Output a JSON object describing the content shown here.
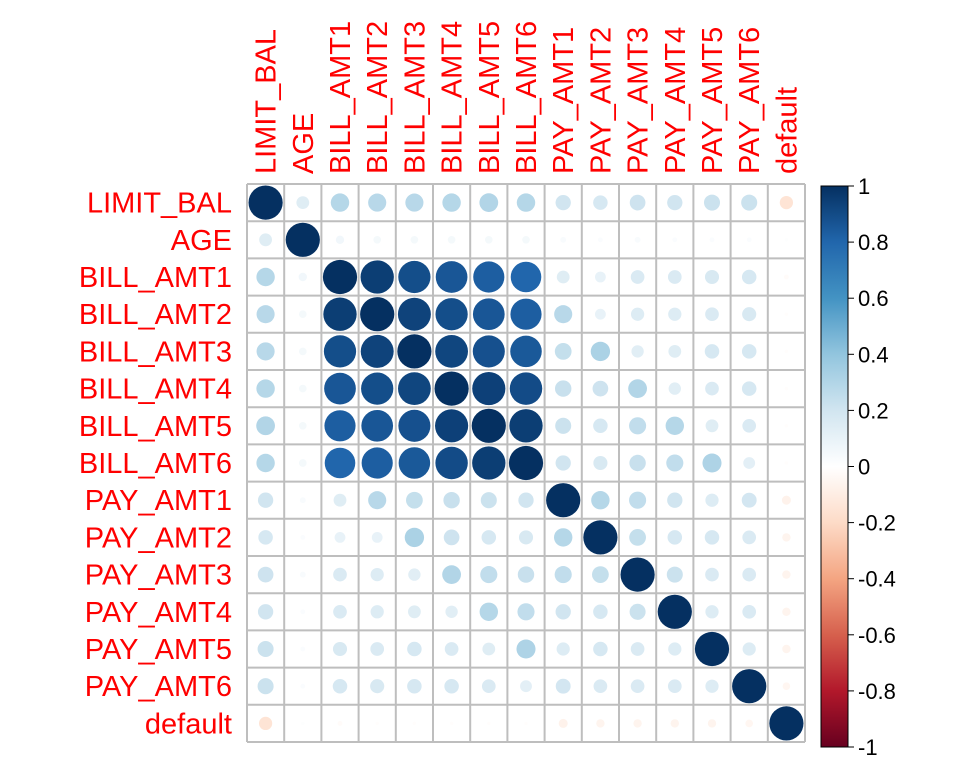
{
  "chart_data": {
    "type": "heatmap",
    "style": "circle correlation matrix",
    "variables": [
      "LIMIT_BAL",
      "AGE",
      "BILL_AMT1",
      "BILL_AMT2",
      "BILL_AMT3",
      "BILL_AMT4",
      "BILL_AMT5",
      "BILL_AMT6",
      "PAY_AMT1",
      "PAY_AMT2",
      "PAY_AMT3",
      "PAY_AMT4",
      "PAY_AMT5",
      "PAY_AMT6",
      "default"
    ],
    "matrix": [
      [
        1.0,
        0.14,
        0.29,
        0.28,
        0.28,
        0.29,
        0.3,
        0.29,
        0.2,
        0.18,
        0.21,
        0.2,
        0.22,
        0.22,
        -0.15
      ],
      [
        0.14,
        1.0,
        0.06,
        0.05,
        0.05,
        0.05,
        0.05,
        0.05,
        0.03,
        0.02,
        0.03,
        0.02,
        0.02,
        0.02,
        0.01
      ],
      [
        0.29,
        0.06,
        1.0,
        0.95,
        0.89,
        0.86,
        0.83,
        0.8,
        0.14,
        0.1,
        0.16,
        0.16,
        0.17,
        0.18,
        -0.02
      ],
      [
        0.28,
        0.05,
        0.95,
        1.0,
        0.93,
        0.89,
        0.86,
        0.83,
        0.28,
        0.1,
        0.15,
        0.15,
        0.16,
        0.17,
        -0.01
      ],
      [
        0.28,
        0.05,
        0.89,
        0.93,
        1.0,
        0.92,
        0.88,
        0.85,
        0.24,
        0.32,
        0.13,
        0.14,
        0.18,
        0.18,
        -0.01
      ],
      [
        0.29,
        0.05,
        0.86,
        0.89,
        0.92,
        1.0,
        0.94,
        0.9,
        0.23,
        0.21,
        0.3,
        0.13,
        0.16,
        0.18,
        -0.01
      ],
      [
        0.3,
        0.05,
        0.83,
        0.86,
        0.88,
        0.94,
        1.0,
        0.95,
        0.22,
        0.18,
        0.25,
        0.29,
        0.14,
        0.16,
        -0.01
      ],
      [
        0.29,
        0.05,
        0.8,
        0.83,
        0.85,
        0.9,
        0.95,
        1.0,
        0.2,
        0.17,
        0.23,
        0.25,
        0.31,
        0.12,
        -0.01
      ],
      [
        0.2,
        0.03,
        0.14,
        0.28,
        0.24,
        0.23,
        0.22,
        0.2,
        1.0,
        0.29,
        0.25,
        0.2,
        0.15,
        0.19,
        -0.07
      ],
      [
        0.18,
        0.02,
        0.1,
        0.1,
        0.32,
        0.21,
        0.18,
        0.17,
        0.29,
        1.0,
        0.24,
        0.18,
        0.18,
        0.16,
        -0.06
      ],
      [
        0.21,
        0.03,
        0.16,
        0.15,
        0.13,
        0.3,
        0.25,
        0.23,
        0.25,
        0.24,
        1.0,
        0.22,
        0.16,
        0.16,
        -0.06
      ],
      [
        0.2,
        0.02,
        0.16,
        0.15,
        0.14,
        0.13,
        0.29,
        0.25,
        0.2,
        0.18,
        0.22,
        1.0,
        0.15,
        0.16,
        -0.06
      ],
      [
        0.22,
        0.02,
        0.17,
        0.16,
        0.18,
        0.16,
        0.14,
        0.31,
        0.15,
        0.18,
        0.16,
        0.15,
        1.0,
        0.15,
        -0.06
      ],
      [
        0.22,
        0.02,
        0.18,
        0.17,
        0.18,
        0.18,
        0.16,
        0.12,
        0.19,
        0.16,
        0.16,
        0.16,
        0.15,
        1.0,
        -0.05
      ],
      [
        -0.15,
        0.01,
        -0.02,
        -0.01,
        -0.01,
        -0.01,
        -0.01,
        -0.01,
        -0.07,
        -0.06,
        -0.06,
        -0.06,
        -0.06,
        -0.05,
        1.0
      ]
    ],
    "colorbar": {
      "ticks": [
        "1",
        "0.8",
        "0.6",
        "0.4",
        "0.2",
        "0",
        "-0.2",
        "-0.4",
        "-0.6",
        "-0.8",
        "-1"
      ],
      "range": [
        -1,
        1
      ]
    },
    "label_color": "#ff0000",
    "grid_color": "#bebebe",
    "palette": [
      "#67001f",
      "#b2182b",
      "#d6604d",
      "#f4a582",
      "#fddbc7",
      "#ffffff",
      "#d1e5f0",
      "#92c5de",
      "#4393c3",
      "#2166ac",
      "#053061"
    ]
  }
}
